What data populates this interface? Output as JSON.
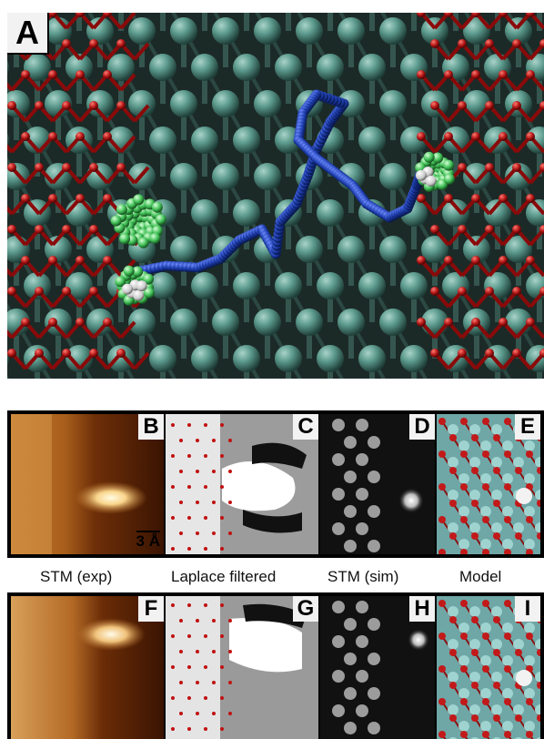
{
  "panels": {
    "a": "A",
    "b": "B",
    "c": "C",
    "d": "D",
    "e": "E",
    "f": "F",
    "g": "G",
    "h": "H",
    "i": "I"
  },
  "scale_bar": "3 Å",
  "row_labels": [
    "STM (exp)",
    "Laplace filtered",
    "STM (sim)",
    "Model"
  ]
}
